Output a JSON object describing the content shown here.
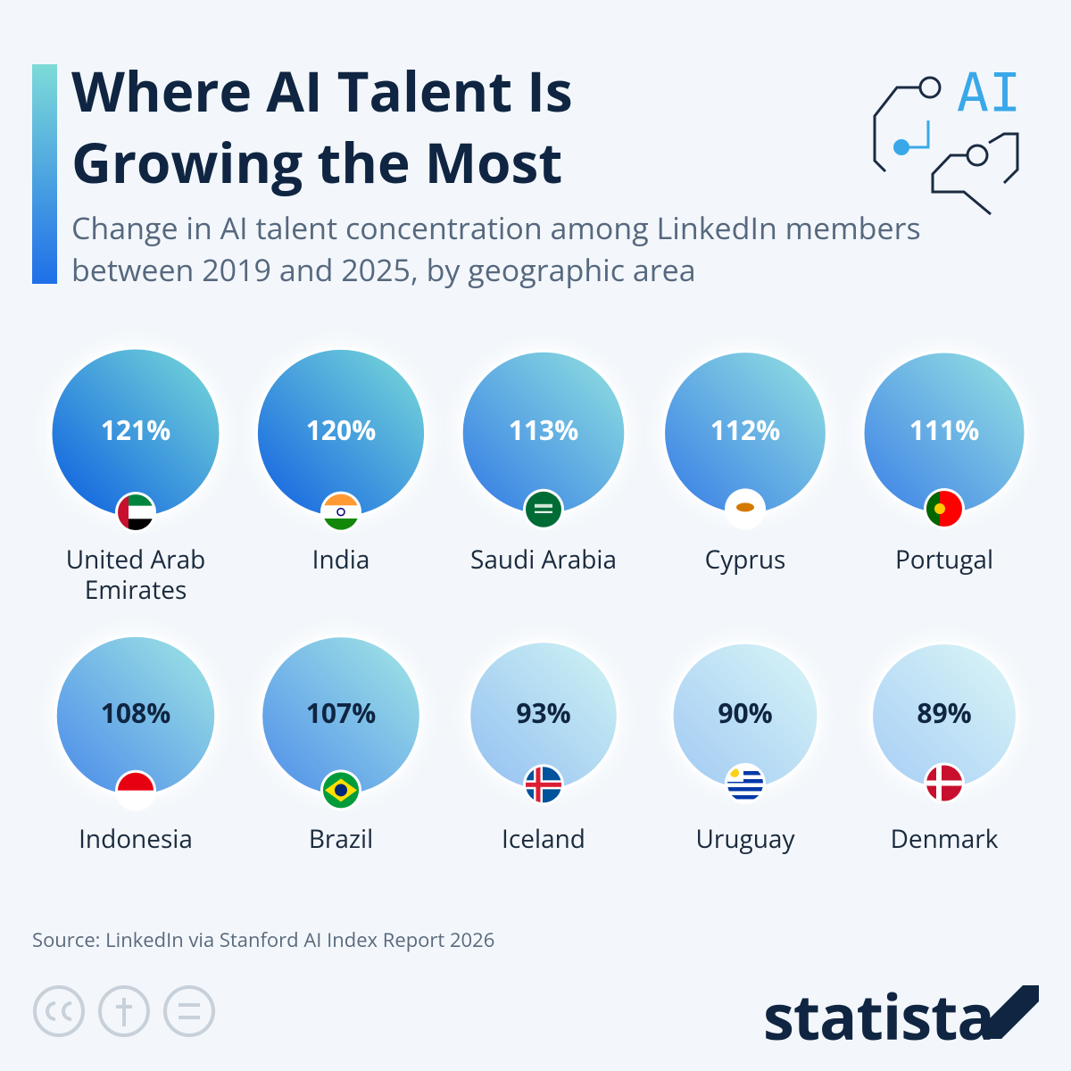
{
  "chart_data": {
    "type": "bubble",
    "title": "Where AI Talent Is Growing the Most",
    "subtitle": "Change in AI talent concentration among LinkedIn members between 2019 and 2025, by geographic area",
    "categories": [
      "United Arab Emirates",
      "India",
      "Saudi Arabia",
      "Cyprus",
      "Portugal",
      "Indonesia",
      "Brazil",
      "Iceland",
      "Uruguay",
      "Denmark"
    ],
    "values": [
      121,
      120,
      113,
      112,
      111,
      108,
      107,
      93,
      90,
      89
    ],
    "value_labels": [
      "121%",
      "120%",
      "113%",
      "112%",
      "111%",
      "108%",
      "107%",
      "93%",
      "90%",
      "89%"
    ],
    "source": "Source: LinkedIn via Stanford AI Index Report 2026",
    "logo": "statista"
  }
}
